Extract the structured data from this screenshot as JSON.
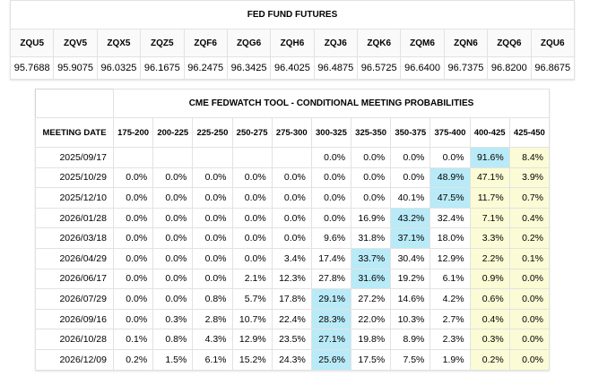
{
  "futures": {
    "title": "FED FUND FUTURES",
    "contracts": [
      "ZQU5",
      "ZQV5",
      "ZQX5",
      "ZQZ5",
      "ZQF6",
      "ZQG6",
      "ZQH6",
      "ZQJ6",
      "ZQK6",
      "ZQM6",
      "ZQN6",
      "ZQQ6",
      "ZQU6"
    ],
    "prices": [
      "95.7688",
      "95.9075",
      "96.0325",
      "96.1675",
      "96.2475",
      "96.3425",
      "96.4025",
      "96.4875",
      "96.5725",
      "96.6400",
      "96.7375",
      "96.8200",
      "96.8675"
    ]
  },
  "fedwatch": {
    "title": "CME FEDWATCH TOOL - CONDITIONAL MEETING PROBABILITIES",
    "date_header": "MEETING DATE",
    "ranges": [
      "175-200",
      "200-225",
      "225-250",
      "250-275",
      "275-300",
      "300-325",
      "325-350",
      "350-375",
      "375-400",
      "400-425",
      "425-450"
    ],
    "highlight_colors": {
      "max": "#b9eaf7",
      "current": "#fbfbd5"
    },
    "rows": [
      {
        "date": "2025/09/17",
        "values": [
          "",
          "",
          "",
          "",
          "",
          "0.0%",
          "0.0%",
          "0.0%",
          "0.0%",
          "91.6%",
          "8.4%"
        ],
        "max_index": 9
      },
      {
        "date": "2025/10/29",
        "values": [
          "0.0%",
          "0.0%",
          "0.0%",
          "0.0%",
          "0.0%",
          "0.0%",
          "0.0%",
          "0.0%",
          "48.9%",
          "47.1%",
          "3.9%"
        ],
        "max_index": 8
      },
      {
        "date": "2025/12/10",
        "values": [
          "0.0%",
          "0.0%",
          "0.0%",
          "0.0%",
          "0.0%",
          "0.0%",
          "0.0%",
          "40.1%",
          "47.5%",
          "11.7%",
          "0.7%"
        ],
        "max_index": 8
      },
      {
        "date": "2026/01/28",
        "values": [
          "0.0%",
          "0.0%",
          "0.0%",
          "0.0%",
          "0.0%",
          "0.0%",
          "16.9%",
          "43.2%",
          "32.4%",
          "7.1%",
          "0.4%"
        ],
        "max_index": 7
      },
      {
        "date": "2026/03/18",
        "values": [
          "0.0%",
          "0.0%",
          "0.0%",
          "0.0%",
          "0.0%",
          "9.6%",
          "31.8%",
          "37.1%",
          "18.0%",
          "3.3%",
          "0.2%"
        ],
        "max_index": 7
      },
      {
        "date": "2026/04/29",
        "values": [
          "0.0%",
          "0.0%",
          "0.0%",
          "0.0%",
          "3.4%",
          "17.4%",
          "33.7%",
          "30.4%",
          "12.9%",
          "2.2%",
          "0.1%"
        ],
        "max_index": 6
      },
      {
        "date": "2026/06/17",
        "values": [
          "0.0%",
          "0.0%",
          "0.0%",
          "2.1%",
          "12.3%",
          "27.8%",
          "31.6%",
          "19.2%",
          "6.1%",
          "0.9%",
          "0.0%"
        ],
        "max_index": 6
      },
      {
        "date": "2026/07/29",
        "values": [
          "0.0%",
          "0.0%",
          "0.8%",
          "5.7%",
          "17.8%",
          "29.1%",
          "27.2%",
          "14.6%",
          "4.2%",
          "0.6%",
          "0.0%"
        ],
        "max_index": 5
      },
      {
        "date": "2026/09/16",
        "values": [
          "0.0%",
          "0.3%",
          "2.8%",
          "10.7%",
          "22.4%",
          "28.3%",
          "22.0%",
          "10.3%",
          "2.7%",
          "0.4%",
          "0.0%"
        ],
        "max_index": 5
      },
      {
        "date": "2026/10/28",
        "values": [
          "0.1%",
          "0.8%",
          "4.3%",
          "12.9%",
          "23.5%",
          "27.1%",
          "19.8%",
          "8.9%",
          "2.3%",
          "0.3%",
          "0.0%"
        ],
        "max_index": 5
      },
      {
        "date": "2026/12/09",
        "values": [
          "0.2%",
          "1.5%",
          "6.1%",
          "15.2%",
          "24.3%",
          "25.6%",
          "17.5%",
          "7.5%",
          "1.9%",
          "0.2%",
          "0.0%"
        ],
        "max_index": 5
      }
    ],
    "yellow_columns": [
      9,
      10
    ]
  }
}
